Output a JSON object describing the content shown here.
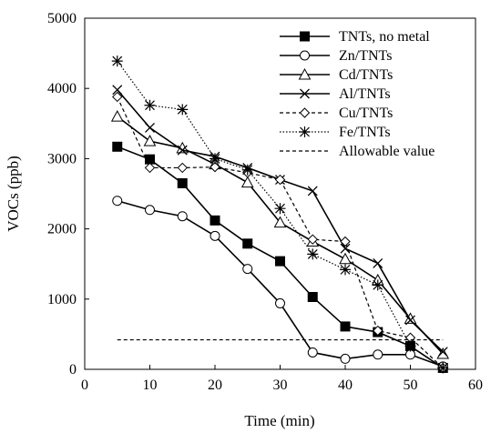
{
  "chart_data": {
    "type": "line",
    "xlabel": "Time (min)",
    "ylabel": "VOCs (ppb)",
    "xlim": [
      0,
      60
    ],
    "ylim": [
      0,
      5000
    ],
    "xticks": [
      0,
      10,
      20,
      30,
      40,
      50,
      60
    ],
    "yticks": [
      0,
      1000,
      2000,
      3000,
      4000,
      5000
    ],
    "grid": false,
    "legend": "top-right",
    "series": [
      {
        "name": "TNTs, no metal",
        "marker": "filled-square",
        "dash": "solid",
        "x": [
          5,
          10,
          15,
          20,
          25,
          30,
          35,
          40,
          45,
          50,
          55
        ],
        "y": [
          3170,
          2990,
          2650,
          2120,
          1790,
          1540,
          1030,
          610,
          530,
          330,
          20
        ]
      },
      {
        "name": "Zn/TNTs",
        "marker": "open-circle",
        "dash": "solid",
        "x": [
          5,
          10,
          15,
          20,
          25,
          30,
          35,
          40,
          45,
          50,
          55
        ],
        "y": [
          2400,
          2270,
          2180,
          1900,
          1430,
          940,
          240,
          150,
          210,
          210,
          40
        ]
      },
      {
        "name": "Cd/TNTs",
        "marker": "open-triangle",
        "dash": "solid",
        "x": [
          5,
          10,
          15,
          20,
          25,
          30,
          35,
          40,
          45,
          50,
          55
        ],
        "y": [
          3600,
          3250,
          3150,
          2920,
          2660,
          2090,
          1820,
          1570,
          1270,
          720,
          220
        ]
      },
      {
        "name": "Al/TNTs",
        "marker": "x",
        "dash": "solid",
        "x": [
          5,
          10,
          15,
          20,
          25,
          30,
          35,
          40,
          45,
          50,
          55
        ],
        "y": [
          3980,
          3440,
          3120,
          3030,
          2870,
          2700,
          2540,
          1720,
          1510,
          700,
          250
        ]
      },
      {
        "name": "Cu/TNTs",
        "marker": "open-diamond",
        "dash": "dashed",
        "x": [
          5,
          10,
          15,
          20,
          25,
          30,
          35,
          40,
          45,
          50,
          55
        ],
        "y": [
          3880,
          2870,
          2870,
          2880,
          2800,
          2700,
          1850,
          1820,
          550,
          450,
          20
        ]
      },
      {
        "name": "Fe/TNTs",
        "marker": "star",
        "dash": "dotted",
        "x": [
          5,
          10,
          15,
          20,
          25,
          30,
          35,
          40,
          45,
          50,
          55
        ],
        "y": [
          4390,
          3760,
          3700,
          3000,
          2840,
          2290,
          1640,
          1420,
          1200,
          330,
          20
        ]
      },
      {
        "name": "Allowable value",
        "marker": "none",
        "dash": "dashed",
        "x": [
          5,
          55
        ],
        "y": [
          420,
          420
        ]
      }
    ]
  }
}
